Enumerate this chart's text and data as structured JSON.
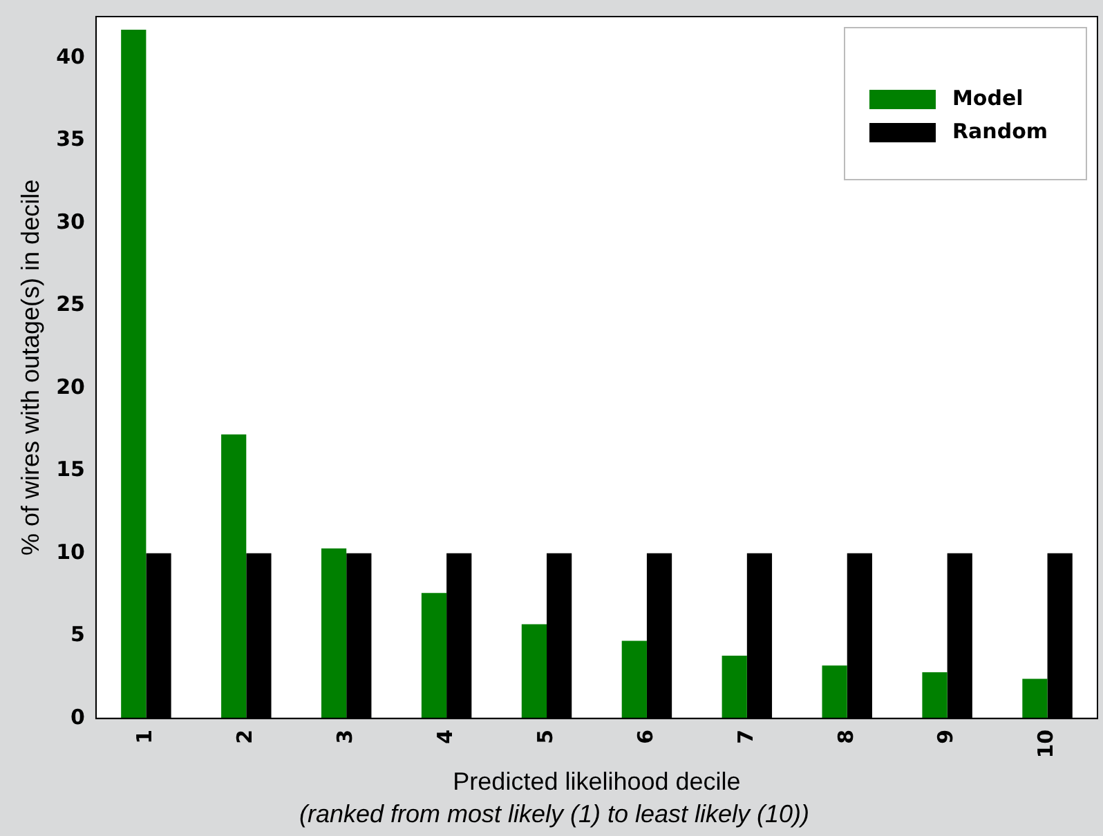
{
  "chart_data": {
    "type": "bar",
    "xlabel": "Predicted likelihood decile",
    "ylabel": "% of wires with outage(s) in decile",
    "annotations": [
      "(ranked from most likely (1) to least likely (10))"
    ],
    "categories": [
      "1",
      "2",
      "3",
      "4",
      "5",
      "6",
      "7",
      "8",
      "9",
      "10"
    ],
    "series": [
      {
        "name": "Model",
        "color": "#008000",
        "values": [
          41.7,
          17.2,
          10.3,
          7.6,
          5.7,
          4.7,
          3.8,
          3.2,
          2.8,
          2.4
        ]
      },
      {
        "name": "Random",
        "color": "#000000",
        "values": [
          10,
          10,
          10,
          10,
          10,
          10,
          10,
          10,
          10,
          10
        ]
      }
    ],
    "ylim": [
      0,
      42.5
    ],
    "yticks": [
      0,
      5,
      10,
      15,
      20,
      25,
      30,
      35,
      40
    ],
    "grid": false,
    "legend": "top right"
  }
}
